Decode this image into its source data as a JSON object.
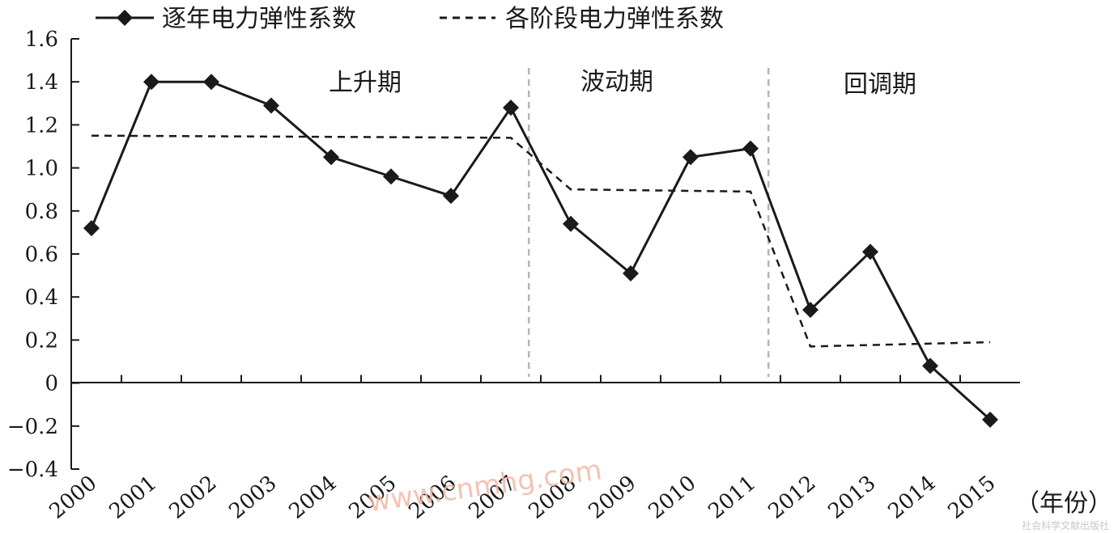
{
  "chart_data": {
    "type": "line",
    "title": "",
    "xlabel": "（年份）",
    "ylabel": "",
    "x": [
      "2000",
      "2001",
      "2002",
      "2003",
      "2004",
      "2005",
      "2006",
      "2007",
      "2008",
      "2009",
      "2010",
      "2011",
      "2012",
      "2013",
      "2014",
      "2015"
    ],
    "ylim": [
      -0.4,
      1.6
    ],
    "yticks": [
      "1.6",
      "1.4",
      "1.2",
      "1.0",
      "0.8",
      "0.6",
      "0.4",
      "0.2",
      "0",
      "-0.2",
      "-0.4"
    ],
    "grid": false,
    "legend_position": "top-left",
    "series": [
      {
        "name": "逐年电力弹性系数",
        "style": "solid-diamond",
        "color": "#1a1a1a",
        "values": [
          0.72,
          1.4,
          1.4,
          1.29,
          1.05,
          0.96,
          0.87,
          1.28,
          0.74,
          0.51,
          1.05,
          1.09,
          0.34,
          0.61,
          0.08,
          -0.17
        ]
      },
      {
        "name": "各阶段电力弹性系数",
        "style": "dashed",
        "color": "#1a1a1a",
        "points": [
          {
            "x": 2000,
            "y": 1.15
          },
          {
            "x": 2007,
            "y": 1.14
          },
          {
            "x": 2008,
            "y": 0.9
          },
          {
            "x": 2011,
            "y": 0.89
          },
          {
            "x": 2012,
            "y": 0.17
          },
          {
            "x": 2015,
            "y": 0.19
          }
        ]
      }
    ],
    "periods": [
      {
        "label": "上升期"
      },
      {
        "label": "波动期"
      },
      {
        "label": "回调期"
      }
    ],
    "dividers_x": [
      2007.3,
      2011.3
    ]
  },
  "watermark": "www.cnmhg.com",
  "publisher_mark": "社会科学文献出版社"
}
